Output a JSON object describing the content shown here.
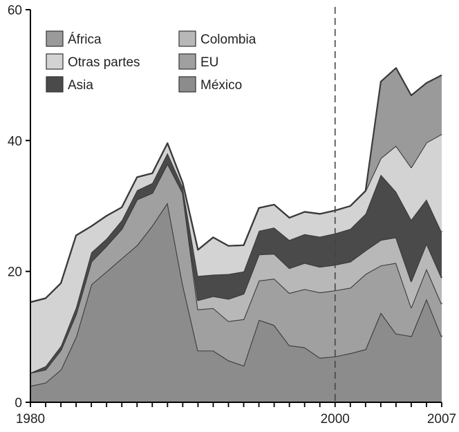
{
  "chart_data": {
    "type": "area",
    "stacked": true,
    "title": "",
    "xlabel": "",
    "ylabel": "",
    "xlim": [
      1980,
      2007
    ],
    "ylim": [
      0,
      60
    ],
    "x_ticks": [
      1980,
      2000,
      2007
    ],
    "y_ticks": [
      0,
      20,
      40,
      60
    ],
    "grid": false,
    "legend_position": "top-left",
    "reference_line": {
      "x": 2000,
      "style": "dashed"
    },
    "x": [
      1980,
      1981,
      1982,
      1983,
      1984,
      1985,
      1986,
      1987,
      1988,
      1989,
      1990,
      1991,
      1992,
      1993,
      1994,
      1995,
      1996,
      1997,
      1998,
      1999,
      2000,
      2001,
      2002,
      2003,
      2004,
      2005,
      2006,
      2007
    ],
    "series": [
      {
        "name": "México",
        "color": "#8c8c8c",
        "values": [
          2.5,
          3,
          5,
          10,
          18,
          20,
          22,
          24,
          27,
          30.5,
          18,
          7.9,
          7.9,
          6.4,
          5.6,
          12.6,
          11.8,
          8.7,
          8.4,
          6.8,
          7,
          7.5,
          8.1,
          13.7,
          10.5,
          10.1,
          15.8,
          10
        ]
      },
      {
        "name": "EU",
        "color": "#a0a0a0",
        "values": [
          2,
          2,
          3,
          3.5,
          3.5,
          3.9,
          4.5,
          7,
          5,
          6,
          14,
          6.3,
          6.5,
          6,
          7.1,
          6,
          7.1,
          8,
          8.9,
          10,
          10.1,
          10,
          11.5,
          7.2,
          10.8,
          4.4,
          4.6,
          5
        ]
      },
      {
        "name": "Colombia",
        "color": "#b8b8b8",
        "values": [
          0,
          0,
          0,
          0,
          0,
          0,
          0,
          0,
          0,
          0,
          0,
          1.4,
          1.8,
          3.4,
          3.9,
          4,
          3.8,
          3.8,
          4,
          3.9,
          3.9,
          4,
          3.6,
          3.9,
          3.9,
          4,
          3.9,
          4
        ]
      },
      {
        "name": "Asia",
        "color": "#4a4a4a",
        "values": [
          0,
          0.5,
          0.6,
          1,
          1.4,
          1.1,
          1.3,
          1.4,
          1.5,
          1.6,
          0.9,
          3.7,
          3.3,
          3.8,
          3.4,
          3.6,
          4,
          4.3,
          4.4,
          4.6,
          4.8,
          5,
          5.6,
          10,
          7,
          9.4,
          6.7,
          7
        ]
      },
      {
        "name": "Otras partes",
        "color": "#d3d3d3",
        "values": [
          10.8,
          10.4,
          9.6,
          11,
          4,
          3.5,
          2,
          2,
          1.5,
          1.5,
          0.6,
          4,
          5.7,
          4.3,
          4.0,
          3.5,
          3.5,
          3.4,
          3.4,
          3.5,
          3.5,
          3.5,
          3.5,
          2.5,
          7,
          8,
          8.7,
          15
        ]
      },
      {
        "name": "África",
        "color": "#9a9a9a",
        "values": [
          0,
          0,
          0,
          0,
          0,
          0,
          0,
          0,
          0,
          0,
          0,
          0,
          0,
          0,
          0,
          0,
          0,
          0,
          0,
          0,
          0,
          0,
          0,
          11.7,
          11.9,
          11,
          9.1,
          9
        ]
      }
    ],
    "legend_order": [
      "África",
      "Otras partes",
      "Asia",
      "Colombia",
      "EU",
      "México"
    ]
  }
}
